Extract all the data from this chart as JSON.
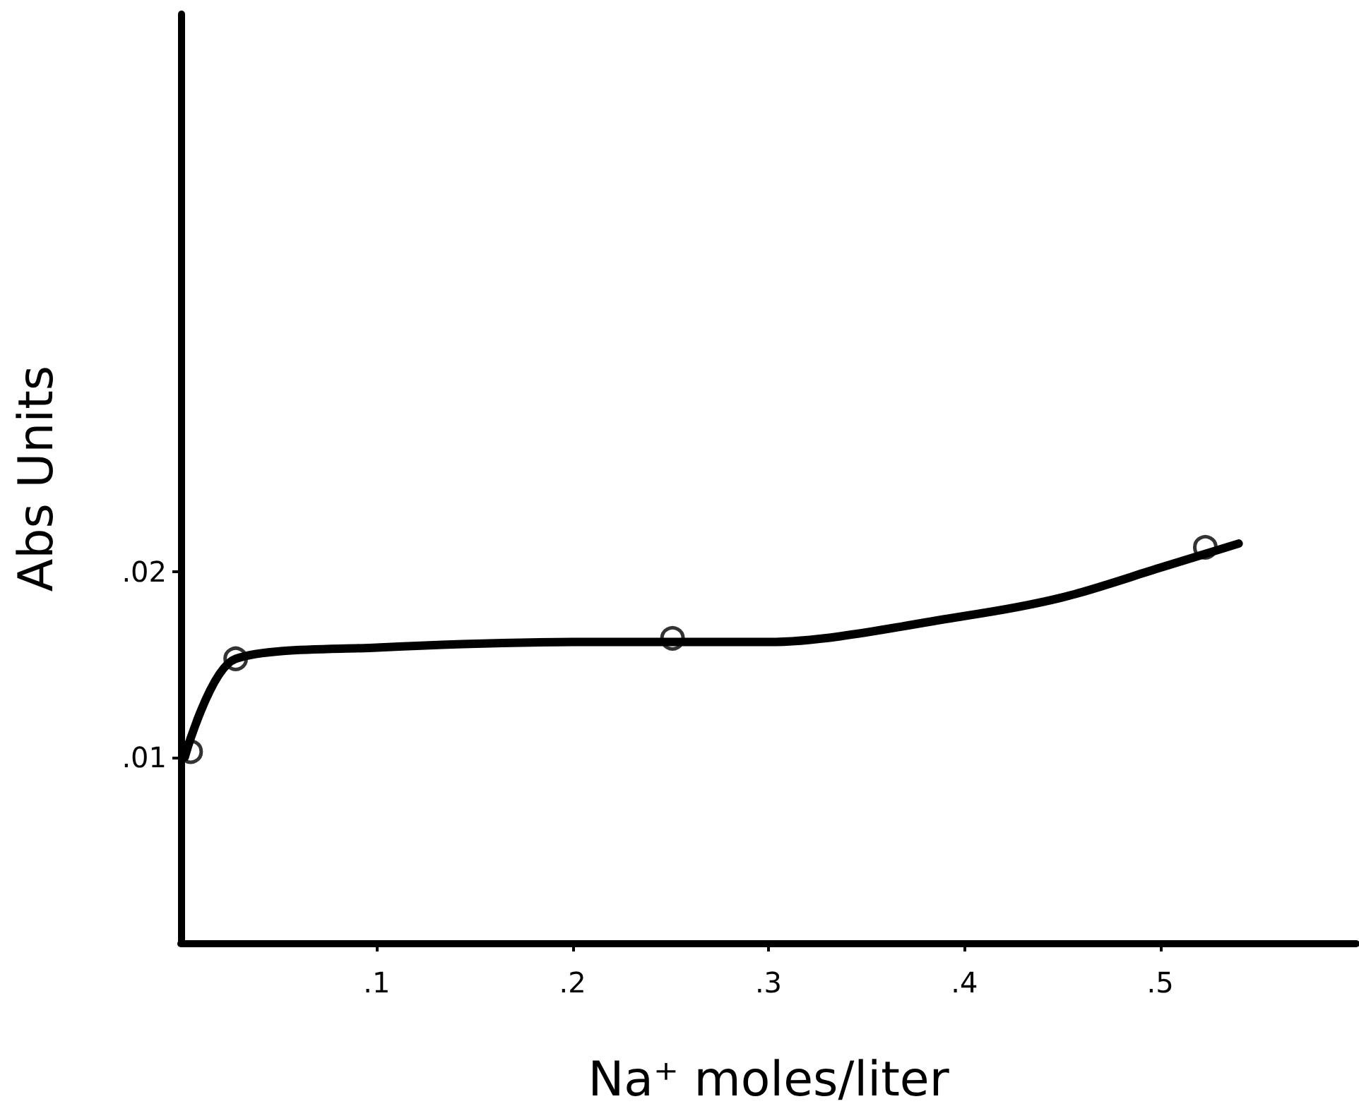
{
  "chart_data": {
    "type": "line",
    "xlabel": "Na⁺ moles/liter",
    "ylabel": "Abs Units",
    "xlim": [
      0,
      0.6
    ],
    "ylim": [
      0,
      0.05
    ],
    "xticks": [
      {
        "value": 0.1,
        "label": ".1"
      },
      {
        "value": 0.2,
        "label": ".2"
      },
      {
        "value": 0.3,
        "label": ".3"
      },
      {
        "value": 0.4,
        "label": ".4"
      },
      {
        "value": 0.5,
        "label": ".5"
      }
    ],
    "yticks": [
      {
        "value": 0.01,
        "label": ".01"
      },
      {
        "value": 0.02,
        "label": ".02"
      }
    ],
    "grid": false,
    "series": [
      {
        "color": "#000000",
        "marker": "none",
        "line_style": "solid",
        "x": [
          0.002,
          0.028,
          0.1,
          0.2,
          0.3,
          0.4,
          0.45,
          0.5,
          0.54
        ],
        "values": [
          0.01,
          0.0153,
          0.0159,
          0.0162,
          0.0162,
          0.0176,
          0.0186,
          0.0202,
          0.0215
        ]
      },
      {
        "type": "scatter",
        "color": "#000000",
        "marker": "circle",
        "x": [
          0.005,
          0.028,
          0.251,
          0.523
        ],
        "values": [
          0.0103,
          0.0153,
          0.0164,
          0.0213
        ]
      }
    ]
  }
}
